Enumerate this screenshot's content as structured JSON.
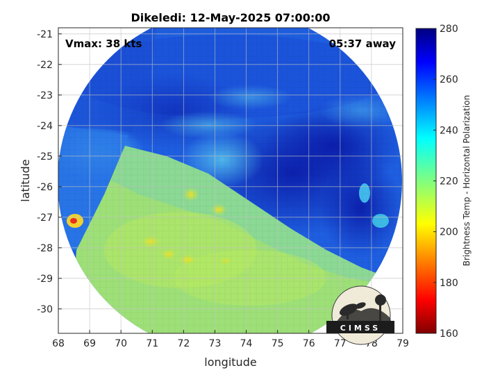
{
  "title": "Dikeledi: 12-May-2025 07:00:00",
  "vmax_label": "Vmax: 38 kts",
  "time_label": "05:37 away",
  "xlabel": "longitude",
  "ylabel": "latitude",
  "colorbar_label": "Brightness Temp - Horizontal Polarization",
  "logo_text": "CIMSS",
  "colors": {
    "cold": "#1030c8",
    "mid": "#30a8e8",
    "warm": "#a0e860",
    "hot": "#e8d830"
  },
  "chart_data": {
    "type": "heatmap",
    "x_ticks": [
      68,
      69,
      70,
      71,
      72,
      73,
      74,
      75,
      76,
      77,
      78,
      79
    ],
    "y_ticks": [
      -21,
      -22,
      -23,
      -24,
      -25,
      -26,
      -27,
      -28,
      -29,
      -30
    ],
    "xlim": [
      68,
      79
    ],
    "ylim": [
      -30.8,
      -20.8
    ],
    "grid": true,
    "colorbar": {
      "ticks": [
        160,
        180,
        200,
        220,
        240,
        260,
        280
      ],
      "range": [
        160,
        280
      ],
      "colormap": "jet"
    }
  }
}
